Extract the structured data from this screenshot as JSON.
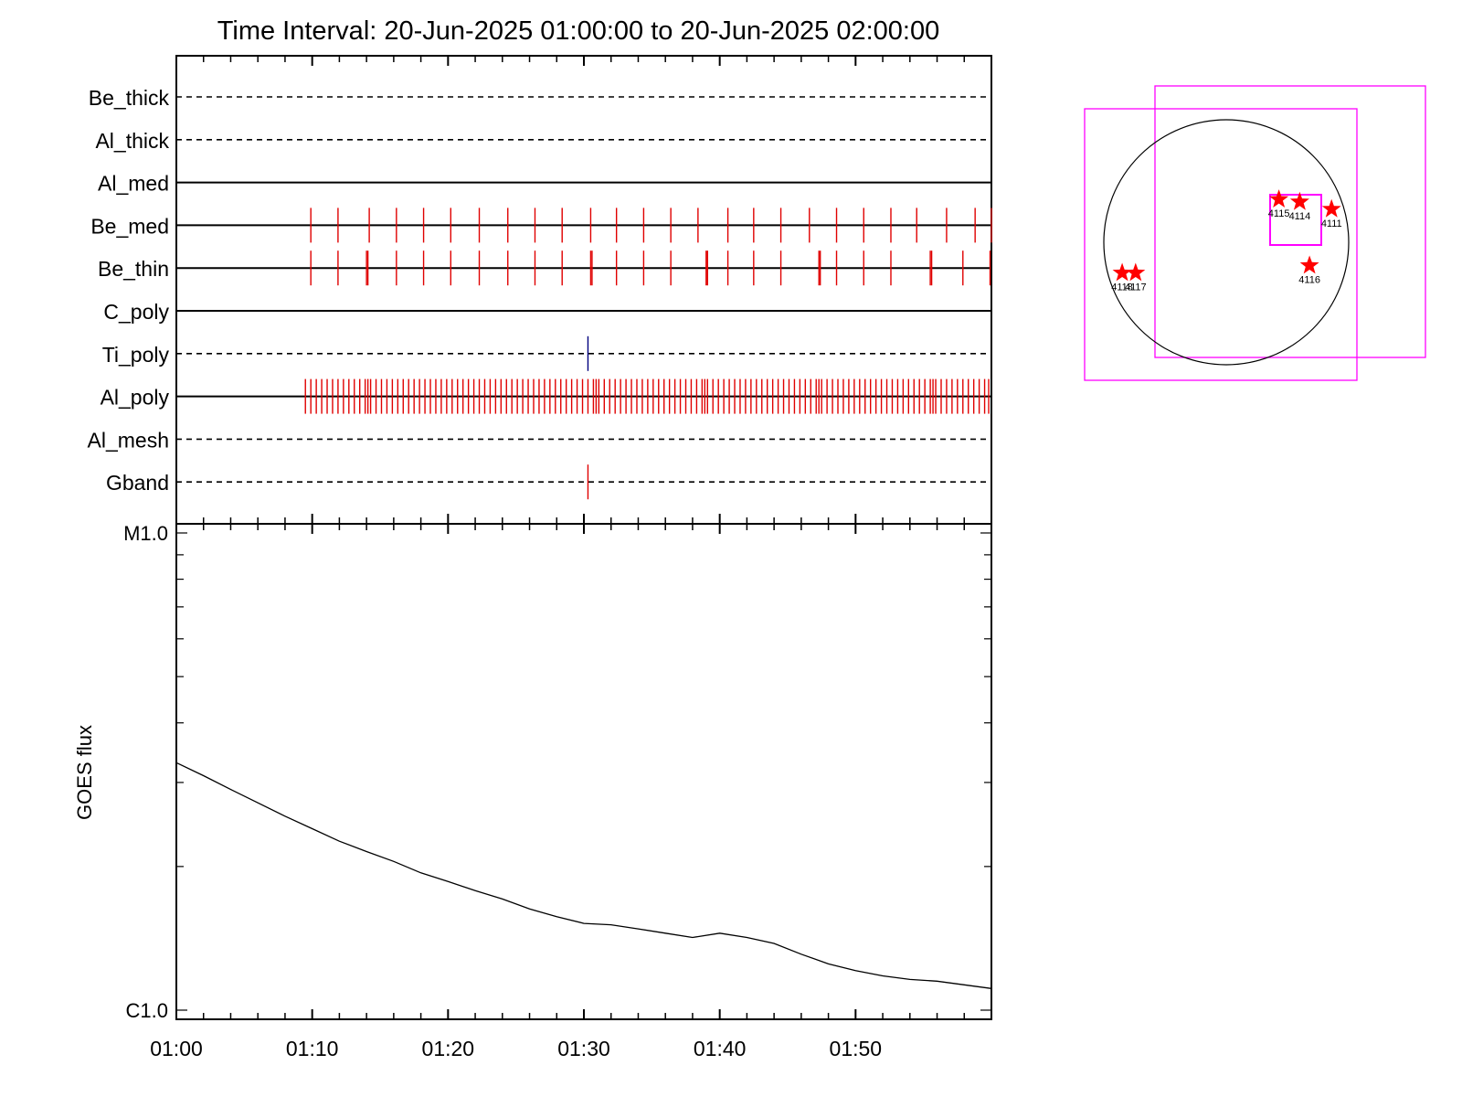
{
  "title": "Time Interval: 20-Jun-2025 01:00:00 to 20-Jun-2025 02:00:00",
  "chart_data": [
    {
      "type": "timeline",
      "x_unit": "minutes after 01:00",
      "xlim": [
        0,
        60
      ],
      "channels": [
        {
          "name": "Be_thick",
          "line": "dashed",
          "color": "#000000",
          "events": []
        },
        {
          "name": "Al_thick",
          "line": "dashed",
          "color": "#000000",
          "events": []
        },
        {
          "name": "Al_med",
          "line": "solid",
          "color": "#000000",
          "events": []
        },
        {
          "name": "Be_med",
          "line": "solid",
          "color": "#e00000",
          "events": [
            9.9,
            11.9,
            14.2,
            16.2,
            18.2,
            20.2,
            22.3,
            24.4,
            26.4,
            28.4,
            30.5,
            32.4,
            34.4,
            36.4,
            38.4,
            40.6,
            42.5,
            44.5,
            46.6,
            48.6,
            50.6,
            52.6,
            54.5,
            56.7,
            58.8,
            60.0
          ]
        },
        {
          "name": "Be_thin",
          "line": "solid",
          "color": "#e00000",
          "events": [
            9.9,
            11.9,
            14.0,
            14.1,
            16.2,
            18.2,
            20.2,
            22.3,
            24.4,
            26.4,
            28.4,
            30.5,
            30.6,
            32.4,
            34.4,
            36.4,
            39.0,
            39.1,
            40.6,
            42.5,
            44.5,
            47.3,
            47.4,
            48.6,
            50.6,
            52.6,
            55.5,
            55.6,
            57.9,
            59.9
          ]
        },
        {
          "name": "C_poly",
          "line": "solid",
          "color": "#000000",
          "events": []
        },
        {
          "name": "Ti_poly",
          "line": "dashed",
          "color": "#00007f",
          "events": [
            30.3
          ]
        },
        {
          "name": "Al_poly",
          "line": "solid",
          "color": "#e00000",
          "events": [
            9.5,
            9.9,
            10.3,
            10.7,
            11.1,
            11.5,
            11.9,
            12.3,
            12.7,
            13.1,
            13.5,
            13.9,
            14.1,
            14.3,
            14.7,
            15.1,
            15.5,
            15.9,
            16.3,
            16.7,
            17.1,
            17.5,
            17.9,
            18.3,
            18.7,
            19.1,
            19.5,
            19.9,
            20.3,
            20.7,
            21.1,
            21.5,
            21.9,
            22.3,
            22.7,
            23.1,
            23.5,
            23.9,
            24.3,
            24.7,
            25.1,
            25.5,
            25.9,
            26.3,
            26.7,
            27.1,
            27.5,
            27.9,
            28.3,
            28.7,
            29.1,
            29.5,
            29.9,
            30.3,
            30.7,
            30.9,
            31.1,
            31.5,
            31.9,
            32.3,
            32.7,
            33.1,
            33.5,
            33.9,
            34.3,
            34.7,
            35.1,
            35.5,
            35.9,
            36.3,
            36.7,
            37.1,
            37.5,
            37.9,
            38.3,
            38.7,
            38.9,
            39.1,
            39.5,
            39.9,
            40.3,
            40.7,
            41.1,
            41.5,
            41.9,
            42.3,
            42.7,
            43.1,
            43.5,
            43.9,
            44.3,
            44.7,
            45.1,
            45.5,
            45.9,
            46.3,
            46.7,
            47.1,
            47.3,
            47.5,
            47.9,
            48.3,
            48.7,
            49.1,
            49.5,
            49.9,
            50.3,
            50.7,
            51.1,
            51.5,
            51.9,
            52.3,
            52.7,
            53.1,
            53.5,
            53.9,
            54.3,
            54.7,
            55.1,
            55.5,
            55.7,
            55.9,
            56.3,
            56.7,
            57.1,
            57.5,
            57.9,
            58.3,
            58.7,
            59.1,
            59.5,
            59.8
          ]
        },
        {
          "name": "Al_mesh",
          "line": "dashed",
          "color": "#000000",
          "events": []
        },
        {
          "name": "Gband",
          "line": "dashed",
          "color": "#e00000",
          "events": [
            30.3
          ]
        }
      ]
    },
    {
      "type": "line",
      "ylabel": "GOES flux",
      "yscale": "log",
      "ylim": [
        1e-06,
        1e-05
      ],
      "y_tick_labels": [
        {
          "value": 1e-05,
          "label": "M1.0"
        },
        {
          "value": 1e-06,
          "label": "C1.0"
        }
      ],
      "x_tick_labels": [
        "01:00",
        "01:10",
        "01:20",
        "01:30",
        "01:40",
        "01:50"
      ],
      "x_tick_values": [
        0,
        10,
        20,
        30,
        40,
        50
      ],
      "xlim": [
        0,
        60
      ],
      "series": [
        {
          "color": "#000000",
          "x": [
            0,
            2,
            4,
            6,
            8,
            10,
            12,
            14,
            16,
            18,
            20,
            22,
            24,
            26,
            28,
            30,
            32,
            34,
            36,
            38,
            40,
            42,
            44,
            46,
            48,
            50,
            52,
            54,
            56,
            58,
            60
          ],
          "y": [
            3.3e-06,
            3.1e-06,
            2.9e-06,
            2.72e-06,
            2.55e-06,
            2.4e-06,
            2.26e-06,
            2.15e-06,
            2.05e-06,
            1.94e-06,
            1.86e-06,
            1.78e-06,
            1.71e-06,
            1.63e-06,
            1.57e-06,
            1.52e-06,
            1.51e-06,
            1.48e-06,
            1.45e-06,
            1.42e-06,
            1.45e-06,
            1.42e-06,
            1.38e-06,
            1.31e-06,
            1.25e-06,
            1.21e-06,
            1.18e-06,
            1.16e-06,
            1.15e-06,
            1.13e-06,
            1.11e-06
          ]
        }
      ]
    },
    {
      "type": "scatter",
      "ylim": [
        -1,
        1
      ],
      "xlim": [
        -1,
        1
      ],
      "points": [
        {
          "label": "4115",
          "x": 0.43,
          "y": 0.35
        },
        {
          "label": "4114",
          "x": 0.6,
          "y": 0.33
        },
        {
          "label": "4111",
          "x": 0.86,
          "y": 0.27
        },
        {
          "label": "4116",
          "x": 0.68,
          "y": -0.19
        },
        {
          "label": "4118",
          "x": -0.85,
          "y": -0.25
        },
        {
          "label": "4117",
          "x": -0.74,
          "y": -0.25
        }
      ],
      "colors": {
        "marker": "#ff0000",
        "box": "#ff00ff",
        "disk": "#000000"
      }
    }
  ]
}
